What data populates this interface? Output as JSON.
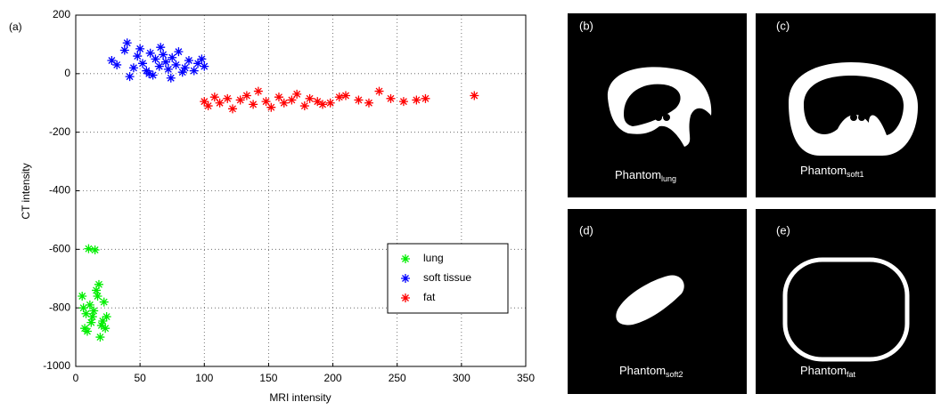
{
  "chart_data": {
    "type": "scatter",
    "panel_label": "(a)",
    "x_label": "MRI intensity",
    "y_label": "CT intensity",
    "xlim": [
      0,
      350
    ],
    "ylim": [
      -1000,
      200
    ],
    "xticks": [
      0,
      50,
      100,
      150,
      200,
      250,
      300,
      350
    ],
    "yticks": [
      -1000,
      -800,
      -600,
      -400,
      -200,
      0,
      200
    ],
    "grid": true,
    "legend": "lower right",
    "series": [
      {
        "name": "lung",
        "color": "#00ee00",
        "x": [
          10,
          15,
          5,
          8,
          12,
          18,
          22,
          14,
          9,
          16,
          20,
          24,
          7,
          11,
          19,
          13,
          17,
          6,
          21,
          23
        ],
        "values": [
          -598,
          -602,
          -760,
          -820,
          -850,
          -720,
          -780,
          -810,
          -880,
          -740,
          -860,
          -830,
          -870,
          -790,
          -900,
          -830,
          -760,
          -800,
          -845,
          -870
        ]
      },
      {
        "name": "soft tissue",
        "color": "#0000ff",
        "x": [
          28,
          32,
          38,
          40,
          45,
          48,
          52,
          55,
          58,
          60,
          62,
          65,
          68,
          70,
          72,
          75,
          78,
          80,
          85,
          88,
          92,
          95,
          98,
          100,
          42,
          50,
          57,
          66,
          74,
          83
        ],
        "values": [
          45,
          30,
          80,
          105,
          20,
          60,
          35,
          10,
          70,
          -5,
          50,
          25,
          65,
          40,
          15,
          55,
          30,
          75,
          20,
          45,
          10,
          35,
          50,
          25,
          -10,
          85,
          0,
          90,
          -15,
          5
        ]
      },
      {
        "name": "fat",
        "color": "#ff0000",
        "x": [
          100,
          103,
          108,
          112,
          118,
          122,
          128,
          133,
          138,
          142,
          148,
          152,
          158,
          162,
          168,
          172,
          178,
          182,
          188,
          192,
          198,
          205,
          210,
          220,
          228,
          236,
          245,
          255,
          265,
          272,
          310
        ],
        "values": [
          -95,
          -110,
          -80,
          -100,
          -85,
          -120,
          -90,
          -75,
          -105,
          -60,
          -95,
          -115,
          -80,
          -100,
          -90,
          -70,
          -110,
          -85,
          -95,
          -105,
          -100,
          -80,
          -75,
          -90,
          -100,
          -60,
          -85,
          -95,
          -90,
          -85,
          -75
        ]
      }
    ]
  },
  "panels": [
    {
      "label": "(b)",
      "name": "Phantom",
      "subscript": "lung"
    },
    {
      "label": "(c)",
      "name": "Phantom",
      "subscript": "soft1"
    },
    {
      "label": "(d)",
      "name": "Phantom",
      "subscript": "soft2"
    },
    {
      "label": "(e)",
      "name": "Phantom",
      "subscript": "fat"
    }
  ]
}
